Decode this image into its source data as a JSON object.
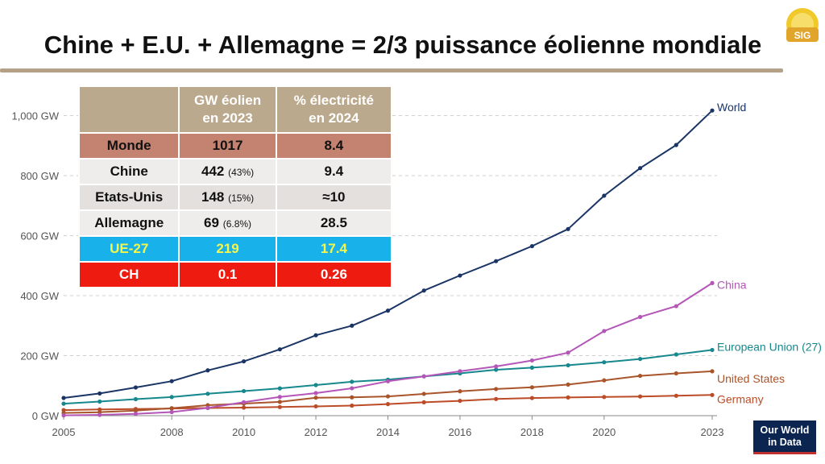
{
  "title": "Chine + E.U. + Allemagne = 2/3 puissance éolienne mondiale",
  "logo_text": "SIG",
  "source_badge": {
    "line1": "Our World",
    "line2": "in Data"
  },
  "table": {
    "headers": [
      "",
      "GW éolien en 2023",
      "% électricité en 2024"
    ],
    "header_lines": [
      [
        "GW éolien",
        "en 2023"
      ],
      [
        "% électricité",
        "en 2024"
      ]
    ],
    "rows": [
      {
        "name": "Monde",
        "gw": "1017",
        "gw_pct": "",
        "elec": "8.4",
        "style": "monde"
      },
      {
        "name": "Chine",
        "gw": "442",
        "gw_pct": "(43%)",
        "elec": "9.4",
        "style": "light"
      },
      {
        "name": "Etats-Unis",
        "gw": "148",
        "gw_pct": "(15%)",
        "elec": "≈10",
        "style": "light alt"
      },
      {
        "name": "Allemagne",
        "gw": "69",
        "gw_pct": "(6.8%)",
        "elec": "28.5",
        "style": "light"
      },
      {
        "name": "UE-27",
        "gw": "219",
        "gw_pct": "",
        "elec": "17.4",
        "style": "ue"
      },
      {
        "name": "CH",
        "gw": "0.1",
        "gw_pct": "",
        "elec": "0.26",
        "style": "ch"
      }
    ]
  },
  "chart_data": {
    "type": "line",
    "x": [
      2005,
      2006,
      2007,
      2008,
      2009,
      2010,
      2011,
      2012,
      2013,
      2014,
      2015,
      2016,
      2017,
      2018,
      2019,
      2020,
      2021,
      2022,
      2023
    ],
    "xticks": [
      2005,
      2008,
      2010,
      2012,
      2014,
      2016,
      2018,
      2020,
      2023
    ],
    "yticks": [
      0,
      200,
      400,
      600,
      800,
      1000
    ],
    "ytick_labels": [
      "0 GW",
      "200 GW",
      "400 GW",
      "600 GW",
      "800 GW",
      "1,000 GW"
    ],
    "ylim": [
      0,
      1000
    ],
    "xlim": [
      2005,
      2023
    ],
    "grid": true,
    "series": [
      {
        "name": "World",
        "color": "#1a3565",
        "values": [
          59,
          74,
          94,
          115,
          151,
          181,
          221,
          268,
          300,
          350,
          417,
          467,
          515,
          565,
          622,
          733,
          825,
          902,
          1017
        ]
      },
      {
        "name": "China",
        "color": "#b356b8",
        "values": [
          1,
          2.6,
          6,
          12,
          25.8,
          44.7,
          62.4,
          75.3,
          91.4,
          114.6,
          131,
          148,
          164,
          184,
          210,
          282,
          329,
          365,
          442
        ]
      },
      {
        "name": "European Union (27)",
        "color": "#17888d",
        "values": [
          40,
          47,
          55,
          62,
          73,
          82,
          91,
          102,
          113,
          120,
          131,
          141,
          153,
          160,
          168,
          178,
          189,
          204,
          219
        ]
      },
      {
        "name": "United States",
        "color": "#a9552c",
        "values": [
          9,
          11.6,
          16.8,
          25,
          34.9,
          40.2,
          45.9,
          59.9,
          61.1,
          64.2,
          72.6,
          81.3,
          88.8,
          94.4,
          103.6,
          117.7,
          132.7,
          140.9,
          148
        ]
      },
      {
        "name": "Germany",
        "color": "#bb4c27",
        "values": [
          18.4,
          20.6,
          22.2,
          23.8,
          25.6,
          26.9,
          28.7,
          31.0,
          33.5,
          38.6,
          44.6,
          49.4,
          55.6,
          58.8,
          60.7,
          62.2,
          63.9,
          66.3,
          69
        ]
      }
    ]
  }
}
